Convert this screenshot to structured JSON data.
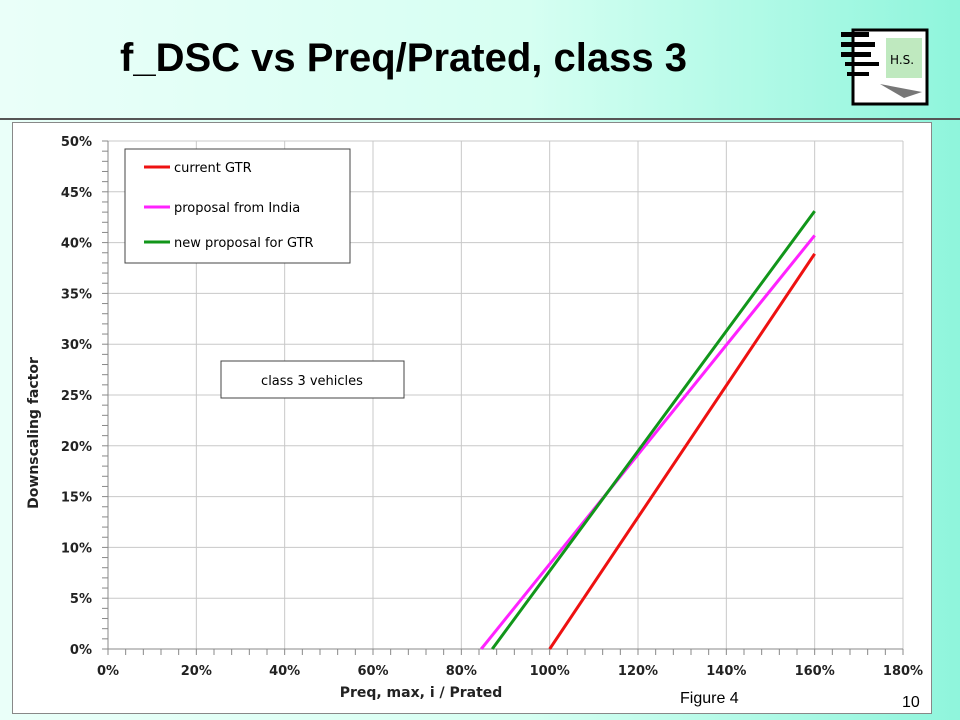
{
  "slide": {
    "title": "f_DSC vs Preq/Prated, class 3",
    "logo_text": "H.S.",
    "figure_caption": "Figure 4",
    "slide_number": "10"
  },
  "chart_data": {
    "type": "line",
    "xlabel": "Preq, max, i / Prated",
    "ylabel": "Downscaling factor",
    "xlim": [
      0,
      180
    ],
    "ylim": [
      0,
      50
    ],
    "x_ticks": [
      "0%",
      "20%",
      "40%",
      "60%",
      "80%",
      "100%",
      "120%",
      "140%",
      "160%",
      "180%"
    ],
    "y_ticks": [
      "0%",
      "5%",
      "10%",
      "15%",
      "20%",
      "25%",
      "30%",
      "35%",
      "40%",
      "45%",
      "50%"
    ],
    "grid": true,
    "legend_position": "top-left",
    "annotation": "class 3 vehicles",
    "series": [
      {
        "name": "current GTR",
        "color": "#ee1111",
        "x": [
          100,
          160
        ],
        "y": [
          0,
          38.9
        ]
      },
      {
        "name": "proposal from India",
        "color": "#ff22ff",
        "x": [
          84.5,
          160
        ],
        "y": [
          0,
          40.7
        ]
      },
      {
        "name": "new proposal for GTR",
        "color": "#11961a",
        "x": [
          87,
          160
        ],
        "y": [
          0,
          43.1
        ]
      }
    ]
  }
}
